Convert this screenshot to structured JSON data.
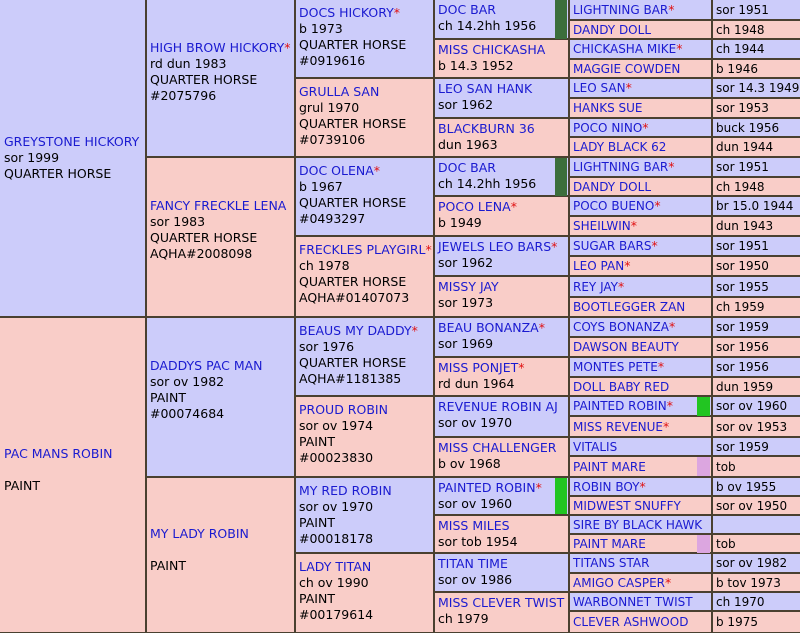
{
  "c1": [
    {
      "name": "GREYSTONE HICKORY",
      "lines": [
        "sor 1999",
        "QUARTER HORSE"
      ]
    },
    {
      "name": "PAC MANS ROBIN",
      "lines": [
        "",
        "PAINT"
      ]
    }
  ],
  "c2": [
    {
      "name": "HIGH BROW HICKORY",
      "star": "*",
      "lines": [
        "rd dun 1983",
        "QUARTER HORSE",
        "#2075796"
      ]
    },
    {
      "name": "FANCY FRECKLE LENA",
      "lines": [
        "sor 1983",
        "QUARTER HORSE",
        "AQHA#2008098"
      ]
    },
    {
      "name": "DADDYS PAC MAN",
      "lines": [
        "sor ov 1982",
        "PAINT",
        "#00074684"
      ]
    },
    {
      "name": "MY LADY ROBIN",
      "lines": [
        "",
        "PAINT"
      ]
    }
  ],
  "c3": [
    {
      "name": "DOCS HICKORY",
      "star": "*",
      "lines": [
        "b 1973",
        "QUARTER HORSE",
        "#0919616"
      ]
    },
    {
      "name": "GRULLA SAN",
      "lines": [
        "grul 1970",
        "QUARTER HORSE",
        "#0739106"
      ]
    },
    {
      "name": "DOC OLENA",
      "star": "*",
      "lines": [
        "b 1967",
        "QUARTER HORSE",
        "#0493297"
      ]
    },
    {
      "name": "FRECKLES PLAYGIRL",
      "star": "*",
      "lines": [
        "ch 1978",
        "QUARTER HORSE",
        "AQHA#01407073"
      ]
    },
    {
      "name": "BEAUS MY DADDY",
      "star": "*",
      "lines": [
        "sor 1976",
        "QUARTER HORSE",
        "AQHA#1181385"
      ]
    },
    {
      "name": "PROUD ROBIN",
      "lines": [
        "sor ov 1974",
        "PAINT",
        "#00023830"
      ]
    },
    {
      "name": "MY RED ROBIN",
      "lines": [
        "sor ov 1970",
        "PAINT",
        "#00018178"
      ]
    },
    {
      "name": "LADY TITAN",
      "lines": [
        "ch ov 1990",
        "PAINT",
        "#00179614"
      ]
    }
  ],
  "c4": [
    {
      "name": "DOC BAR",
      "lines": [
        "ch 14.2hh 1956"
      ]
    },
    {
      "name": "MISS CHICKASHA",
      "lines": [
        "b 14.3 1952"
      ]
    },
    {
      "name": "LEO SAN HANK",
      "lines": [
        "sor 1962"
      ]
    },
    {
      "name": "BLACKBURN 36",
      "lines": [
        "dun 1963"
      ]
    },
    {
      "name": "DOC BAR",
      "lines": [
        "ch 14.2hh 1956"
      ]
    },
    {
      "name": "POCO LENA",
      "star": "*",
      "lines": [
        "b 1949"
      ]
    },
    {
      "name": "JEWELS LEO BARS",
      "star": "*",
      "lines": [
        "sor 1962"
      ]
    },
    {
      "name": "MISSY JAY",
      "lines": [
        "sor 1973"
      ]
    },
    {
      "name": "BEAU BONANZA",
      "star": "*",
      "lines": [
        "sor 1969"
      ]
    },
    {
      "name": "MISS PONJET",
      "star": "*",
      "lines": [
        "rd dun 1964"
      ]
    },
    {
      "name": "REVENUE ROBIN AJ",
      "lines": [
        "sor ov 1970"
      ]
    },
    {
      "name": "MISS CHALLENGER",
      "lines": [
        "b ov 1968"
      ]
    },
    {
      "name": "PAINTED ROBIN",
      "star": "*",
      "lines": [
        "sor ov 1960"
      ]
    },
    {
      "name": "MISS MILES",
      "lines": [
        "sor tob 1954"
      ]
    },
    {
      "name": "TITAN TIME",
      "lines": [
        "sor ov 1986"
      ]
    },
    {
      "name": "MISS CLEVER TWIST",
      "lines": [
        "ch 1979"
      ]
    }
  ],
  "c5": [
    {
      "name": "LIGHTNING BAR",
      "star": "*",
      "info": "sor 1951"
    },
    {
      "name": "DANDY DOLL",
      "info": "ch 1948"
    },
    {
      "name": "CHICKASHA MIKE",
      "star": "*",
      "info": "ch 1944"
    },
    {
      "name": "MAGGIE COWDEN",
      "info": "b 1946"
    },
    {
      "name": "LEO SAN",
      "star": "*",
      "info": "sor 14.3 1949"
    },
    {
      "name": "HANKS SUE",
      "info": "sor 1953"
    },
    {
      "name": "POCO NINO",
      "star": "*",
      "info": "buck 1956"
    },
    {
      "name": "LADY BLACK 62",
      "info": "dun 1944"
    },
    {
      "name": "LIGHTNING BAR",
      "star": "*",
      "info": "sor 1951"
    },
    {
      "name": "DANDY DOLL",
      "info": "ch 1948"
    },
    {
      "name": "POCO BUENO",
      "star": "*",
      "info": "br 15.0 1944"
    },
    {
      "name": "SHEILWIN",
      "star": "*",
      "info": "dun 1943"
    },
    {
      "name": "SUGAR BARS",
      "star": "*",
      "info": "sor 1951"
    },
    {
      "name": "LEO PAN",
      "star": "*",
      "info": "sor 1950"
    },
    {
      "name": "REY JAY",
      "star": "*",
      "info": "sor 1955"
    },
    {
      "name": "BOOTLEGGER ZAN",
      "info": "ch 1959"
    },
    {
      "name": "COYS BONANZA",
      "star": "*",
      "info": "sor 1959"
    },
    {
      "name": "DAWSON BEAUTY",
      "info": "sor 1956"
    },
    {
      "name": "MONTES PETE",
      "star": "*",
      "info": "sor 1956"
    },
    {
      "name": "DOLL BABY RED",
      "info": "dun 1959"
    },
    {
      "name": "PAINTED ROBIN",
      "star": "*",
      "info": "sor ov 1960"
    },
    {
      "name": "MISS REVENUE",
      "star": "*",
      "info": "sor ov 1953"
    },
    {
      "name": "VITALIS",
      "info": "sor 1959"
    },
    {
      "name": "PAINT MARE",
      "info": "tob"
    },
    {
      "name": "ROBIN BOY",
      "star": "*",
      "info": "b ov 1955"
    },
    {
      "name": "MIDWEST SNUFFY",
      "info": "sor ov 1950"
    },
    {
      "name": "SIRE BY BLACK HAWK",
      "info": ""
    },
    {
      "name": "PAINT MARE",
      "info": "tob"
    },
    {
      "name": "TITANS STAR",
      "info": "sor ov 1982"
    },
    {
      "name": "AMIGO CASPER",
      "star": "*",
      "info": "b tov 1973"
    },
    {
      "name": "WARBONNET TWIST",
      "info": "ch 1970"
    },
    {
      "name": "CLEVER ASHWOOD",
      "info": "b 1975"
    }
  ],
  "colors": {
    "male": "#ccccfa",
    "female": "#f9cdc8",
    "name": "#1a1ad0",
    "star": "#e01010",
    "grid": "#4a4030"
  }
}
